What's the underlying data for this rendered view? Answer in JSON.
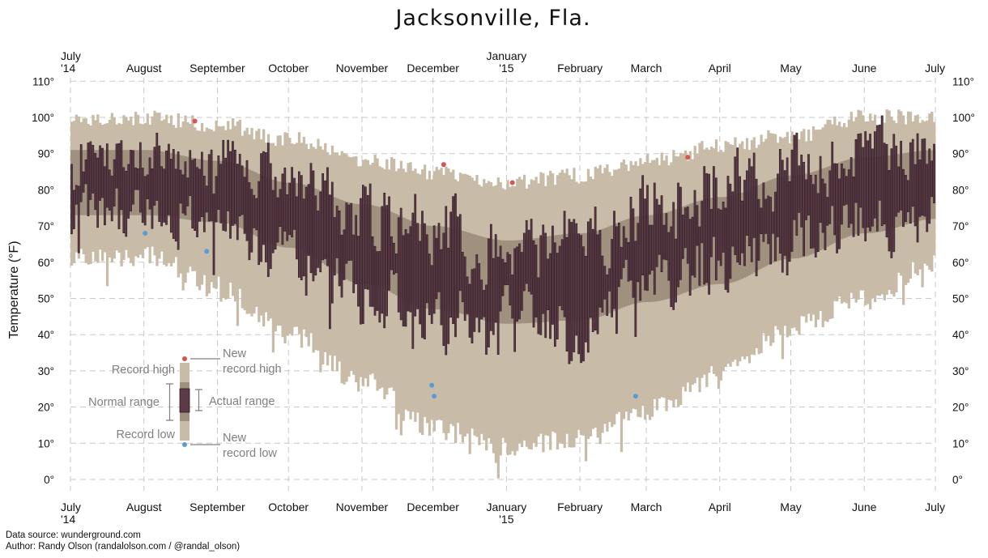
{
  "chart_data": {
    "type": "bar",
    "title": "Jacksonville, Fla.",
    "ylabel": "Temperature (°F)",
    "ylim": [
      0,
      110
    ],
    "yticks": [
      "0°",
      "10°",
      "20°",
      "30°",
      "40°",
      "50°",
      "60°",
      "70°",
      "80°",
      "90°",
      "100°",
      "110°"
    ],
    "date_range": [
      "2014-07-01",
      "2015-07-01"
    ],
    "month_ticks": [
      {
        "date": "2014-07-01",
        "line1": "July",
        "line2": "'14"
      },
      {
        "date": "2014-08-01",
        "line1": "August",
        "line2": ""
      },
      {
        "date": "2014-09-01",
        "line1": "September",
        "line2": ""
      },
      {
        "date": "2014-10-01",
        "line1": "October",
        "line2": ""
      },
      {
        "date": "2014-11-01",
        "line1": "November",
        "line2": ""
      },
      {
        "date": "2014-12-01",
        "line1": "December",
        "line2": ""
      },
      {
        "date": "2015-01-01",
        "line1": "January",
        "line2": "'15"
      },
      {
        "date": "2015-02-01",
        "line1": "February",
        "line2": ""
      },
      {
        "date": "2015-03-01",
        "line1": "March",
        "line2": ""
      },
      {
        "date": "2015-04-01",
        "line1": "April",
        "line2": ""
      },
      {
        "date": "2015-05-01",
        "line1": "May",
        "line2": ""
      },
      {
        "date": "2015-06-01",
        "line1": "June",
        "line2": ""
      },
      {
        "date": "2015-07-01",
        "line1": "July",
        "line2": ""
      }
    ],
    "grid": true,
    "colors": {
      "record_range": "#c8bca8",
      "normal_range": "#a0917f",
      "actual_range": "#5d3a48",
      "actual_edge": "#2a1820",
      "new_record_high": "#d9534f",
      "new_record_low": "#5b9bd5",
      "legend_text": "#808080"
    },
    "series": [
      {
        "name": "Record high",
        "knots": [
          [
            "2014-07-01",
            100
          ],
          [
            "2014-08-01",
            100
          ],
          [
            "2014-09-01",
            98
          ],
          [
            "2014-10-01",
            94
          ],
          [
            "2014-11-01",
            88
          ],
          [
            "2014-12-01",
            85
          ],
          [
            "2015-01-01",
            82
          ],
          [
            "2015-02-01",
            84
          ],
          [
            "2015-03-01",
            88
          ],
          [
            "2015-04-01",
            92
          ],
          [
            "2015-05-01",
            95
          ],
          [
            "2015-06-01",
            100
          ],
          [
            "2015-07-01",
            100
          ]
        ]
      },
      {
        "name": "Normal high",
        "knots": [
          [
            "2014-07-01",
            91
          ],
          [
            "2014-08-01",
            91
          ],
          [
            "2014-09-01",
            88
          ],
          [
            "2014-10-01",
            82
          ],
          [
            "2014-11-01",
            76
          ],
          [
            "2014-12-01",
            70
          ],
          [
            "2015-01-01",
            66
          ],
          [
            "2015-02-01",
            68
          ],
          [
            "2015-03-01",
            73
          ],
          [
            "2015-04-01",
            78
          ],
          [
            "2015-05-01",
            84
          ],
          [
            "2015-06-01",
            89
          ],
          [
            "2015-07-01",
            91
          ]
        ]
      },
      {
        "name": "Normal low",
        "knots": [
          [
            "2014-07-01",
            73
          ],
          [
            "2014-08-01",
            73
          ],
          [
            "2014-09-01",
            71
          ],
          [
            "2014-10-01",
            64
          ],
          [
            "2014-11-01",
            54
          ],
          [
            "2014-12-01",
            47
          ],
          [
            "2015-01-01",
            43
          ],
          [
            "2015-02-01",
            44
          ],
          [
            "2015-03-01",
            49
          ],
          [
            "2015-04-01",
            54
          ],
          [
            "2015-05-01",
            61
          ],
          [
            "2015-06-01",
            68
          ],
          [
            "2015-07-01",
            72
          ]
        ]
      },
      {
        "name": "Record low",
        "knots": [
          [
            "2014-07-01",
            64
          ],
          [
            "2014-08-01",
            65
          ],
          [
            "2014-09-01",
            56
          ],
          [
            "2014-10-01",
            43
          ],
          [
            "2014-11-01",
            30
          ],
          [
            "2014-12-01",
            17
          ],
          [
            "2015-01-01",
            12
          ],
          [
            "2015-02-01",
            14
          ],
          [
            "2015-03-01",
            22
          ],
          [
            "2015-04-01",
            32
          ],
          [
            "2015-05-01",
            45
          ],
          [
            "2015-06-01",
            53
          ],
          [
            "2015-07-01",
            63
          ]
        ]
      },
      {
        "name": "Actual high",
        "knots": [
          [
            "2014-07-01",
            90
          ],
          [
            "2014-08-01",
            91
          ],
          [
            "2014-09-01",
            89
          ],
          [
            "2014-10-01",
            83
          ],
          [
            "2014-11-01",
            72
          ],
          [
            "2014-12-01",
            68
          ],
          [
            "2015-01-01",
            63
          ],
          [
            "2015-02-01",
            66
          ],
          [
            "2015-03-01",
            76
          ],
          [
            "2015-04-01",
            81
          ],
          [
            "2015-05-01",
            86
          ],
          [
            "2015-06-01",
            91
          ],
          [
            "2015-07-01",
            90
          ]
        ]
      },
      {
        "name": "Actual low",
        "knots": [
          [
            "2014-07-01",
            74
          ],
          [
            "2014-08-01",
            74
          ],
          [
            "2014-09-01",
            70
          ],
          [
            "2014-10-01",
            62
          ],
          [
            "2014-11-01",
            51
          ],
          [
            "2014-12-01",
            44
          ],
          [
            "2015-01-01",
            42
          ],
          [
            "2015-02-01",
            41
          ],
          [
            "2015-03-01",
            52
          ],
          [
            "2015-04-01",
            58
          ],
          [
            "2015-05-01",
            66
          ],
          [
            "2015-06-01",
            72
          ],
          [
            "2015-07-01",
            74
          ]
        ]
      }
    ],
    "new_record_highs": [
      {
        "date": "2014-08-22",
        "value": 99
      },
      {
        "date": "2014-12-05",
        "value": 87
      },
      {
        "date": "2015-01-03",
        "value": 82
      },
      {
        "date": "2015-03-18",
        "value": 89
      }
    ],
    "new_record_lows": [
      {
        "date": "2014-08-01",
        "value": 68
      },
      {
        "date": "2014-08-27",
        "value": 63
      },
      {
        "date": "2014-11-30",
        "value": 26
      },
      {
        "date": "2014-12-01",
        "value": 23
      },
      {
        "date": "2015-02-24",
        "value": 23
      }
    ],
    "legend": {
      "record_high_label": "Record high",
      "record_low_label": "Record low",
      "normal_range_label": "Normal range",
      "actual_range_label": "Actual range",
      "new_record_high_line1": "New",
      "new_record_high_line2": "record high",
      "new_record_low_line1": "New",
      "new_record_low_line2": "record low"
    }
  },
  "footer": {
    "source": "Data source: wunderground.com",
    "author": "Author: Randy Olson (randalolson.com / @randal_olson)"
  }
}
